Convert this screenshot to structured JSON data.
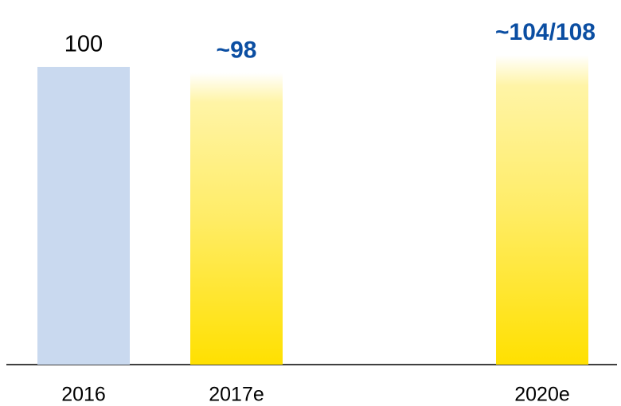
{
  "chart_data": {
    "type": "bar",
    "categories": [
      "2016",
      "2017e",
      null,
      "2020e"
    ],
    "values": [
      100,
      98,
      null,
      104
    ],
    "value_labels": [
      "100",
      "~98",
      null,
      "~104/108"
    ],
    "colors": [
      "#c9d9ef",
      "#ffe000",
      null,
      "#ffe000"
    ],
    "value_label_colors": [
      "#000000",
      "#0b4ea2",
      null,
      "#0b4ea2"
    ]
  }
}
